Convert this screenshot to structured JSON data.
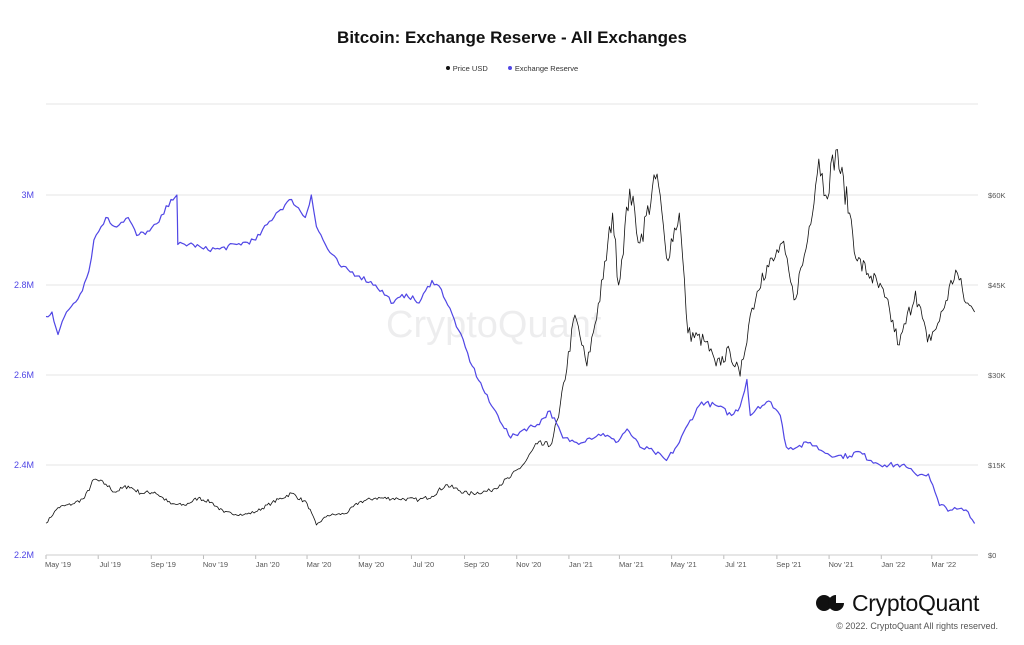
{
  "chart_data": {
    "type": "line",
    "title": "Bitcoin: Exchange Reserve - All Exchanges",
    "legend_position": "top-center",
    "grid": true,
    "colors": {
      "price": "#111111",
      "reserve": "#5046e5"
    },
    "x_ticks": [
      "May '19",
      "Jul '19",
      "Sep '19",
      "Nov '19",
      "Jan '20",
      "Mar '20",
      "May '20",
      "Jul '20",
      "Sep '20",
      "Nov '20",
      "Jan '21",
      "Mar '21",
      "May '21",
      "Jul '21",
      "Sep '21",
      "Nov '21",
      "Jan '22",
      "Mar '22"
    ],
    "y_left": {
      "ticks": [
        "2.2M",
        "2.4M",
        "2.6M",
        "2.8M",
        "3M"
      ],
      "range": [
        2200000,
        3000000
      ]
    },
    "y_right": {
      "ticks": [
        "$0",
        "$15K",
        "$30K",
        "$45K",
        "$60K"
      ],
      "range": [
        0,
        60000
      ]
    },
    "series": [
      {
        "name": "Price USD",
        "axis": "right",
        "points": [
          [
            "2019-05-01",
            5300
          ],
          [
            "2019-05-15",
            7900
          ],
          [
            "2019-06-01",
            8500
          ],
          [
            "2019-06-15",
            9500
          ],
          [
            "2019-06-26",
            12600
          ],
          [
            "2019-07-10",
            11800
          ],
          [
            "2019-07-20",
            10500
          ],
          [
            "2019-08-05",
            11500
          ],
          [
            "2019-08-20",
            10300
          ],
          [
            "2019-09-05",
            10500
          ],
          [
            "2019-09-24",
            8500
          ],
          [
            "2019-10-10",
            8300
          ],
          [
            "2019-10-26",
            9500
          ],
          [
            "2019-11-10",
            8800
          ],
          [
            "2019-11-25",
            7100
          ],
          [
            "2019-12-18",
            6700
          ],
          [
            "2020-01-01",
            7200
          ],
          [
            "2020-01-20",
            8700
          ],
          [
            "2020-02-12",
            10300
          ],
          [
            "2020-03-01",
            8600
          ],
          [
            "2020-03-12",
            5000
          ],
          [
            "2020-03-25",
            6600
          ],
          [
            "2020-04-15",
            6900
          ],
          [
            "2020-05-01",
            8800
          ],
          [
            "2020-05-20",
            9500
          ],
          [
            "2020-06-15",
            9400
          ],
          [
            "2020-07-10",
            9200
          ],
          [
            "2020-07-25",
            9800
          ],
          [
            "2020-08-10",
            11700
          ],
          [
            "2020-09-05",
            10200
          ],
          [
            "2020-10-01",
            10700
          ],
          [
            "2020-10-25",
            13000
          ],
          [
            "2020-11-10",
            15300
          ],
          [
            "2020-11-25",
            18500
          ],
          [
            "2020-12-10",
            18200
          ],
          [
            "2020-12-20",
            23000
          ],
          [
            "2021-01-08",
            40000
          ],
          [
            "2021-01-22",
            31500
          ],
          [
            "2021-02-10",
            46000
          ],
          [
            "2021-02-21",
            57000
          ],
          [
            "2021-02-28",
            45000
          ],
          [
            "2021-03-13",
            61000
          ],
          [
            "2021-03-25",
            52000
          ],
          [
            "2021-04-14",
            63500
          ],
          [
            "2021-04-25",
            49500
          ],
          [
            "2021-05-10",
            57000
          ],
          [
            "2021-05-20",
            37000
          ],
          [
            "2021-06-10",
            35500
          ],
          [
            "2021-06-22",
            31500
          ],
          [
            "2021-07-08",
            34000
          ],
          [
            "2021-07-20",
            29800
          ],
          [
            "2021-08-01",
            40000
          ],
          [
            "2021-08-15",
            47000
          ],
          [
            "2021-08-28",
            49000
          ],
          [
            "2021-09-07",
            52000
          ],
          [
            "2021-09-21",
            42500
          ],
          [
            "2021-10-05",
            51000
          ],
          [
            "2021-10-20",
            66000
          ],
          [
            "2021-10-28",
            60000
          ],
          [
            "2021-11-09",
            67500
          ],
          [
            "2021-11-25",
            57000
          ],
          [
            "2021-12-04",
            49000
          ],
          [
            "2021-12-20",
            46500
          ],
          [
            "2022-01-05",
            43000
          ],
          [
            "2022-01-22",
            35000
          ],
          [
            "2022-02-10",
            44000
          ],
          [
            "2022-02-24",
            35500
          ],
          [
            "2022-03-10",
            39000
          ],
          [
            "2022-03-29",
            47500
          ],
          [
            "2022-04-10",
            42000
          ],
          [
            "2022-04-20",
            40500
          ]
        ]
      },
      {
        "name": "Exchange Reserve",
        "axis": "left",
        "points": [
          [
            "2019-05-01",
            2730000
          ],
          [
            "2019-05-08",
            2740000
          ],
          [
            "2019-05-15",
            2690000
          ],
          [
            "2019-05-25",
            2740000
          ],
          [
            "2019-06-10",
            2780000
          ],
          [
            "2019-06-20",
            2830000
          ],
          [
            "2019-06-26",
            2900000
          ],
          [
            "2019-07-10",
            2950000
          ],
          [
            "2019-07-20",
            2930000
          ],
          [
            "2019-08-05",
            2950000
          ],
          [
            "2019-08-15",
            2910000
          ],
          [
            "2019-08-30",
            2920000
          ],
          [
            "2019-09-10",
            2940000
          ],
          [
            "2019-09-24",
            2990000
          ],
          [
            "2019-10-01",
            3000000
          ],
          [
            "2019-10-02",
            2890000
          ],
          [
            "2019-10-20",
            2890000
          ],
          [
            "2019-11-01",
            2880000
          ],
          [
            "2019-11-20",
            2880000
          ],
          [
            "2019-12-10",
            2890000
          ],
          [
            "2020-01-01",
            2900000
          ],
          [
            "2020-01-25",
            2960000
          ],
          [
            "2020-02-12",
            2990000
          ],
          [
            "2020-02-28",
            2950000
          ],
          [
            "2020-03-06",
            3000000
          ],
          [
            "2020-03-12",
            2930000
          ],
          [
            "2020-03-25",
            2880000
          ],
          [
            "2020-04-10",
            2840000
          ],
          [
            "2020-05-01",
            2820000
          ],
          [
            "2020-05-20",
            2800000
          ],
          [
            "2020-06-10",
            2760000
          ],
          [
            "2020-06-25",
            2780000
          ],
          [
            "2020-07-10",
            2760000
          ],
          [
            "2020-07-25",
            2810000
          ],
          [
            "2020-08-05",
            2790000
          ],
          [
            "2020-08-25",
            2700000
          ],
          [
            "2020-09-10",
            2620000
          ],
          [
            "2020-09-30",
            2540000
          ],
          [
            "2020-10-10",
            2510000
          ],
          [
            "2020-10-25",
            2460000
          ],
          [
            "2020-11-10",
            2480000
          ],
          [
            "2020-11-25",
            2490000
          ],
          [
            "2020-12-10",
            2520000
          ],
          [
            "2020-12-25",
            2460000
          ],
          [
            "2021-01-10",
            2450000
          ],
          [
            "2021-01-25",
            2460000
          ],
          [
            "2021-02-10",
            2470000
          ],
          [
            "2021-02-25",
            2450000
          ],
          [
            "2021-03-10",
            2480000
          ],
          [
            "2021-03-25",
            2440000
          ],
          [
            "2021-04-10",
            2430000
          ],
          [
            "2021-04-25",
            2410000
          ],
          [
            "2021-05-10",
            2450000
          ],
          [
            "2021-05-20",
            2490000
          ],
          [
            "2021-06-05",
            2540000
          ],
          [
            "2021-06-25",
            2530000
          ],
          [
            "2021-07-10",
            2510000
          ],
          [
            "2021-07-20",
            2530000
          ],
          [
            "2021-07-28",
            2590000
          ],
          [
            "2021-08-01",
            2510000
          ],
          [
            "2021-08-10",
            2530000
          ],
          [
            "2021-08-25",
            2540000
          ],
          [
            "2021-09-05",
            2510000
          ],
          [
            "2021-09-12",
            2440000
          ],
          [
            "2021-09-25",
            2440000
          ],
          [
            "2021-10-10",
            2450000
          ],
          [
            "2021-10-25",
            2430000
          ],
          [
            "2021-11-10",
            2420000
          ],
          [
            "2021-11-25",
            2420000
          ],
          [
            "2021-12-05",
            2430000
          ],
          [
            "2021-12-20",
            2410000
          ],
          [
            "2022-01-05",
            2400000
          ],
          [
            "2022-01-25",
            2400000
          ],
          [
            "2022-02-10",
            2380000
          ],
          [
            "2022-02-25",
            2380000
          ],
          [
            "2022-03-10",
            2310000
          ],
          [
            "2022-03-25",
            2300000
          ],
          [
            "2022-04-10",
            2300000
          ],
          [
            "2022-04-20",
            2270000
          ]
        ]
      }
    ]
  },
  "watermark": "CryptoQuant",
  "brand": {
    "name": "CryptoQuant",
    "logo_icon": "cryptoquant-logo-icon"
  },
  "footer": {
    "copyright": "© 2022. CryptoQuant All rights reserved."
  }
}
